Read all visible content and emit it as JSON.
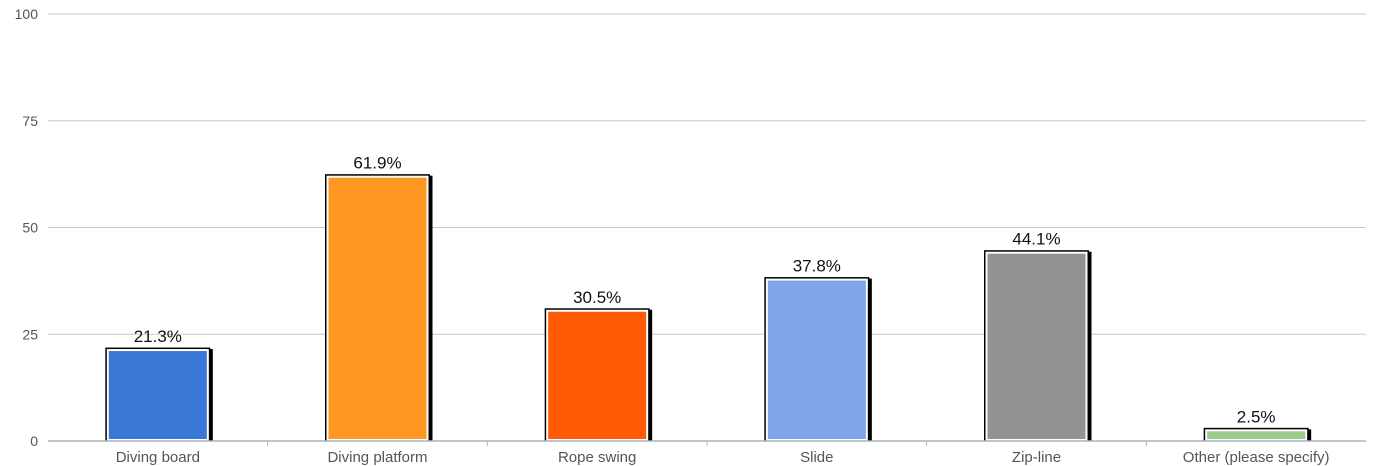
{
  "chart_data": {
    "type": "bar",
    "categories": [
      "Diving board",
      "Diving platform",
      "Rope swing",
      "Slide",
      "Zip-line",
      "Other (please specify)"
    ],
    "values": [
      21.3,
      61.9,
      30.5,
      37.8,
      44.1,
      2.5
    ],
    "data_labels": [
      "21.3%",
      "61.9%",
      "30.5%",
      "37.8%",
      "44.1%",
      "2.5%"
    ],
    "colors": [
      "#3a78d8",
      "#ff9822",
      "#ff5a06",
      "#7fa5e8",
      "#939393",
      "#99cc88"
    ],
    "y_ticks": [
      0,
      25,
      50,
      75,
      100
    ],
    "ylim": [
      0,
      100
    ],
    "grid": true,
    "legend": "none",
    "title": "",
    "xlabel": "",
    "ylabel": ""
  }
}
